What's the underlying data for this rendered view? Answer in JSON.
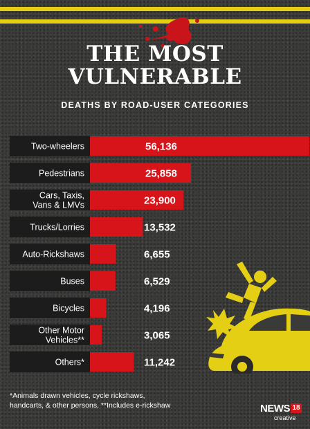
{
  "header": {
    "title_line1": "THE MOST",
    "title_line2": "VULNERABLE",
    "subtitle": "DEATHS BY ROAD-USER CATEGORIES"
  },
  "chart_data": {
    "type": "bar",
    "orientation": "horizontal",
    "title": "THE MOST VULNERABLE",
    "subtitle": "DEATHS BY ROAD-USER CATEGORIES",
    "categories": [
      [
        "Two-wheelers"
      ],
      [
        "Pedestrians"
      ],
      [
        "Cars, Taxis,",
        "Vans & LMVs"
      ],
      [
        "Trucks/Lorries"
      ],
      [
        "Auto-Rickshaws"
      ],
      [
        "Buses"
      ],
      [
        "Bicycles"
      ],
      [
        "Other Motor",
        "Vehicles**"
      ],
      [
        "Others*"
      ]
    ],
    "values": [
      56136,
      25858,
      23900,
      13532,
      6655,
      6529,
      4196,
      3065,
      11242
    ],
    "value_labels": [
      "56,136",
      "25,858",
      "23,900",
      "13,532",
      "6,655",
      "6,529",
      "4,196",
      "3,065",
      "11,242"
    ],
    "bar_color": "#d7141a",
    "label_bg": "#1c1c1c",
    "road_line_color": "#e4cf14",
    "grid": false,
    "legend": "none"
  },
  "footnote": {
    "line1": "*Animals drawn vehicles, cycle rickshaws,",
    "line2": "handcarts, & other persons, **Includes e-rickshaw"
  },
  "logo": {
    "news": "NEWS",
    "num": "18",
    "creative": "creative"
  },
  "icons": [
    "blood-splatter-icon",
    "car-crash-illustration-icon"
  ]
}
